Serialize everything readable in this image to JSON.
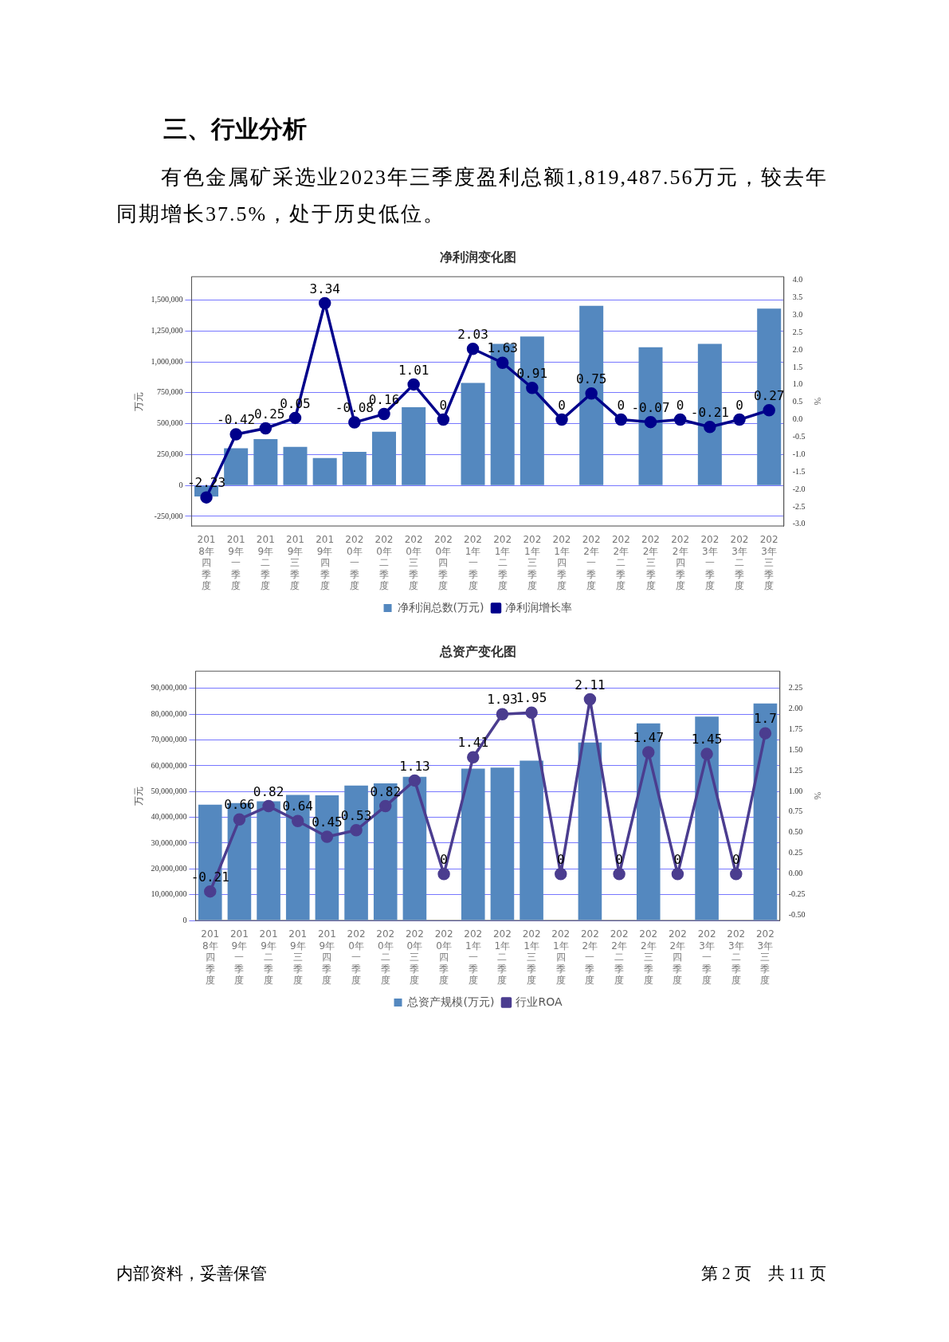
{
  "chart_data": [
    {
      "type": "bar",
      "title": "净利润变化图",
      "ylabel": "万元",
      "y2label": "%",
      "annotations": [
        "三、行业分析",
        "有色金属矿采选业2023年三季度盈利总额1,819,487.56万元，较去年同期增长37.5%，处于历史低位。"
      ],
      "categories": [
        "2018年四季度",
        "2019年一季度",
        "2019年二季度",
        "2019年三季度",
        "2019年四季度",
        "2020年一季度",
        "2020年二季度",
        "2020年三季度",
        "2020年四季度",
        "2021年一季度",
        "2021年二季度",
        "2021年三季度",
        "2021年四季度",
        "2022年一季度",
        "2022年二季度",
        "2022年三季度",
        "2022年四季度",
        "2023年一季度",
        "2023年二季度",
        "2023年三季度"
      ],
      "series": [
        {
          "name": "净利润总数(万元)",
          "color": "#5488bf",
          "values": [
            -90000,
            300000,
            375000,
            312000,
            221000,
            272000,
            434000,
            632000,
            null,
            829000,
            1145000,
            1205000,
            null,
            1453000,
            null,
            1118000,
            null,
            1145000,
            null,
            1430000
          ]
        },
        {
          "name": "净利润增长率",
          "type": "line",
          "axis": "y2",
          "color": "#00008b",
          "data_labels": true,
          "values": [
            -2.23,
            -0.42,
            -0.25,
            0.05,
            3.34,
            -0.08,
            0.16,
            1.01,
            0,
            2.03,
            1.63,
            0.91,
            0,
            0.75,
            0,
            -0.07,
            0,
            -0.21,
            0,
            0.27
          ]
        }
      ],
      "ylim": [
        -328000,
        1689000
      ],
      "yticks": [
        {
          "value": -250000,
          "label": "-250,000"
        },
        0,
        {
          "value": 250000,
          "label": "250,000"
        },
        {
          "value": 500000,
          "label": "500,000"
        },
        {
          "value": 750000,
          "label": "750,000"
        },
        {
          "value": 1000000,
          "label": "1,000,000"
        },
        {
          "value": 1250000,
          "label": "1,250,000"
        },
        {
          "value": 1500000,
          "label": "1,500,000"
        }
      ],
      "y2lim": [
        -3.05,
        4.1
      ],
      "y2ticks": [
        {
          "value": -3,
          "label": "-3.0"
        },
        {
          "value": -2.5,
          "label": "-2.5"
        },
        {
          "value": -2,
          "label": "-2.0"
        },
        {
          "value": -1.5,
          "label": "-1.5"
        },
        {
          "value": -1,
          "label": "-1.0"
        },
        {
          "value": -0.5,
          "label": "-0.5"
        },
        {
          "value": 0,
          "label": "0.0"
        },
        {
          "value": 0.5,
          "label": "0.5"
        },
        {
          "value": 1,
          "label": "1.0"
        },
        {
          "value": 1.5,
          "label": "1.5"
        },
        {
          "value": 2,
          "label": "2.0"
        },
        {
          "value": 2.5,
          "label": "2.5"
        },
        {
          "value": 3,
          "label": "3.0"
        },
        {
          "value": 3.5,
          "label": "3.5"
        },
        {
          "value": 4,
          "label": "4.0"
        }
      ],
      "grid": "y",
      "legend": "bottom",
      "marker": "circle",
      "line_style": "solid"
    },
    {
      "type": "bar",
      "title": "总资产变化图",
      "ylabel": "万元",
      "y2label": "%",
      "annotations": [
        "内部资料，妥善保管",
        "第 2 页　共 11 页"
      ],
      "categories": [
        "2018年四季度",
        "2019年一季度",
        "2019年二季度",
        "2019年三季度",
        "2019年四季度",
        "2020年一季度",
        "2020年二季度",
        "2020年三季度",
        "2020年四季度",
        "2021年一季度",
        "2021年二季度",
        "2021年三季度",
        "2021年四季度",
        "2022年一季度",
        "2022年二季度",
        "2022年三季度",
        "2022年四季度",
        "2023年一季度",
        "2023年二季度",
        "2023年三季度"
      ],
      "series": [
        {
          "name": "总资产规模(万元)",
          "color": "#5488bf",
          "values": [
            44900000,
            45500000,
            46200000,
            48700000,
            48500000,
            52300000,
            53200000,
            55700000,
            null,
            58900000,
            59300000,
            62000000,
            null,
            69000000,
            null,
            76400000,
            null,
            79100000,
            null,
            84200000
          ]
        },
        {
          "name": "行业ROA",
          "type": "line",
          "axis": "y2",
          "color": "#4b3d8f",
          "data_labels": true,
          "values": [
            -0.21,
            0.66,
            0.82,
            0.64,
            0.45,
            0.53,
            0.82,
            1.13,
            0,
            1.41,
            1.93,
            1.95,
            0,
            2.11,
            0,
            1.47,
            0,
            1.45,
            0,
            1.7
          ]
        }
      ],
      "ylim": [
        0,
        96700000
      ],
      "yticks": [
        0,
        {
          "value": 10000000,
          "label": "10,000,000"
        },
        {
          "value": 20000000,
          "label": "20,000,000"
        },
        {
          "value": 30000000,
          "label": "30,000,000"
        },
        {
          "value": 40000000,
          "label": "40,000,000"
        },
        {
          "value": 50000000,
          "label": "50,000,000"
        },
        {
          "value": 60000000,
          "label": "60,000,000"
        },
        {
          "value": 70000000,
          "label": "70,000,000"
        },
        {
          "value": 80000000,
          "label": "80,000,000"
        },
        {
          "value": 90000000,
          "label": "90,000,000"
        }
      ],
      "y2lim": [
        -0.56,
        2.45
      ],
      "y2ticks": [
        {
          "value": -0.5,
          "label": "-0.50"
        },
        {
          "value": -0.25,
          "label": "-0.25"
        },
        {
          "value": 0,
          "label": "0.00"
        },
        {
          "value": 0.25,
          "label": "0.25"
        },
        {
          "value": 0.5,
          "label": "0.50"
        },
        {
          "value": 0.75,
          "label": "0.75"
        },
        {
          "value": 1,
          "label": "1.00"
        },
        {
          "value": 1.25,
          "label": "1.25"
        },
        {
          "value": 1.5,
          "label": "1.50"
        },
        {
          "value": 1.75,
          "label": "1.75"
        },
        {
          "value": 2,
          "label": "2.00"
        },
        {
          "value": 2.25,
          "label": "2.25"
        }
      ],
      "grid": "y",
      "legend": "bottom",
      "marker": "circle",
      "line_style": "solid"
    }
  ]
}
